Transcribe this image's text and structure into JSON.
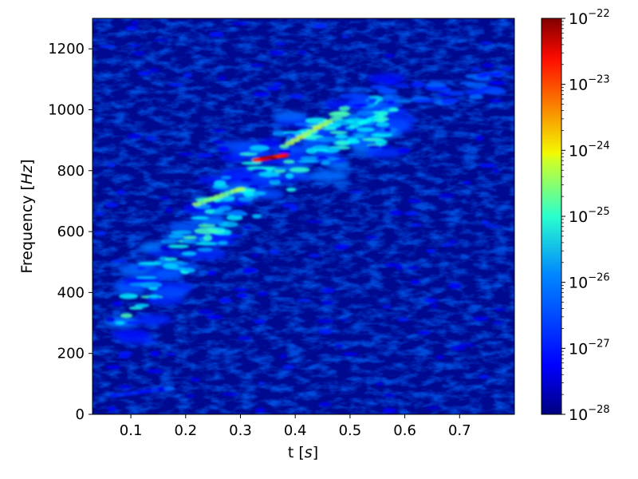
{
  "chart_data": {
    "type": "heatmap",
    "subtype": "spectrogram",
    "title": "",
    "xlabel_text": "t",
    "xlabel_unit": "s",
    "ylabel_text": "Frequency",
    "ylabel_unit": "Hz",
    "xlim": [
      0.03,
      0.8
    ],
    "ylim": [
      0,
      1300
    ],
    "x_ticks": [
      0.1,
      0.2,
      0.3,
      0.4,
      0.5,
      0.6,
      0.7
    ],
    "x_tick_labels": [
      "0.1",
      "0.2",
      "0.3",
      "0.4",
      "0.5",
      "0.6",
      "0.7"
    ],
    "y_ticks": [
      0,
      200,
      400,
      600,
      800,
      1000,
      1200
    ],
    "y_tick_labels": [
      "0",
      "200",
      "400",
      "600",
      "800",
      "1000",
      "1200"
    ],
    "colormap": "jet",
    "color_scale": "log",
    "clim": [
      1e-28,
      1e-22
    ],
    "colorbar_ticks": [
      {
        "base": "10",
        "exp": "−22",
        "value": 1e-22
      },
      {
        "base": "10",
        "exp": "−23",
        "value": 1e-23
      },
      {
        "base": "10",
        "exp": "−24",
        "value": 1e-24
      },
      {
        "base": "10",
        "exp": "−25",
        "value": 1e-25
      },
      {
        "base": "10",
        "exp": "−26",
        "value": 1e-26
      },
      {
        "base": "10",
        "exp": "−27",
        "value": 1e-27
      },
      {
        "base": "10",
        "exp": "−28",
        "value": 1e-28
      }
    ],
    "features": [
      {
        "t": [
          0.07,
          0.17
        ],
        "f": [
          62,
          85
        ],
        "log_power": -26.5
      },
      {
        "t": [
          0.08,
          0.58
        ],
        "f": [
          300,
          1000
        ],
        "log_power": -25.5
      },
      {
        "t": [
          0.22,
          0.3
        ],
        "f": [
          690,
          740
        ],
        "log_power": -24.5
      },
      {
        "t": [
          0.33,
          0.38
        ],
        "f": [
          835,
          850
        ],
        "log_power": -22.3
      },
      {
        "t": [
          0.38,
          0.46
        ],
        "f": [
          880,
          960
        ],
        "log_power": -24.5
      },
      {
        "t": [
          0.5,
          0.56
        ],
        "f": [
          940,
          985
        ],
        "log_power": -25.3
      }
    ]
  }
}
